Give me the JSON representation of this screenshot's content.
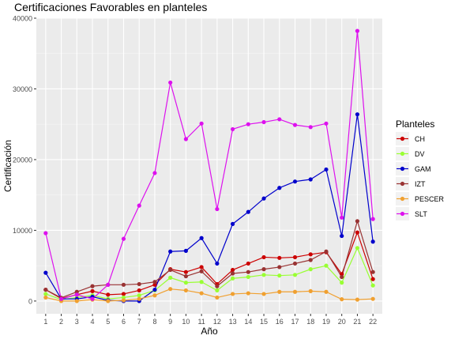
{
  "chart_data": {
    "type": "line",
    "title": "Certificaciones Favorables en planteles",
    "xlabel": "Año",
    "ylabel": "Certificación",
    "categories": [
      "1",
      "2",
      "3",
      "4",
      "5",
      "6",
      "7",
      "8",
      "9",
      "10",
      "11",
      "12",
      "13",
      "14",
      "15",
      "16",
      "17",
      "18",
      "19",
      "20",
      "21",
      "22"
    ],
    "ylim": [
      -1800,
      40000
    ],
    "yticks": [
      0,
      10000,
      20000,
      30000,
      40000
    ],
    "grid": true,
    "legend": {
      "title": "Planteles",
      "placement": "right"
    },
    "series": [
      {
        "name": "CH",
        "color": "#cc0000",
        "values": [
          1600,
          350,
          900,
          1400,
          900,
          1000,
          1500,
          2300,
          4500,
          4100,
          4800,
          2400,
          4400,
          5300,
          6200,
          6100,
          6200,
          6600,
          6900,
          3800,
          9700,
          3100
        ]
      },
      {
        "name": "DV",
        "color": "#99ff33",
        "values": [
          1000,
          200,
          500,
          800,
          300,
          500,
          800,
          1500,
          3300,
          2600,
          2700,
          1500,
          3200,
          3400,
          3700,
          3600,
          3700,
          4500,
          5000,
          2600,
          7500,
          2200
        ]
      },
      {
        "name": "GAM",
        "color": "#0000cc",
        "values": [
          4000,
          300,
          300,
          600,
          100,
          0,
          0,
          1600,
          7000,
          7100,
          8900,
          5300,
          10900,
          12600,
          14500,
          16000,
          16900,
          17200,
          18600,
          9200,
          26400,
          8400
        ]
      },
      {
        "name": "IZT",
        "color": "#993333",
        "values": [
          1600,
          450,
          1300,
          2100,
          2300,
          2300,
          2400,
          2700,
          4400,
          3500,
          4200,
          2100,
          3900,
          4100,
          4500,
          4800,
          5300,
          5800,
          7000,
          3400,
          11300,
          4100
        ]
      },
      {
        "name": "PESCER",
        "color": "#f0a030",
        "values": [
          500,
          0,
          0,
          200,
          0,
          100,
          300,
          800,
          1700,
          1500,
          1100,
          500,
          1000,
          1100,
          1000,
          1300,
          1300,
          1400,
          1300,
          250,
          200,
          300
        ]
      },
      {
        "name": "SLT",
        "color": "#dd11ee",
        "values": [
          9600,
          300,
          900,
          300,
          2300,
          8800,
          13500,
          18100,
          30900,
          22900,
          25100,
          13000,
          24300,
          25000,
          25300,
          25700,
          24900,
          24600,
          25100,
          11800,
          38200,
          11600
        ]
      }
    ]
  }
}
